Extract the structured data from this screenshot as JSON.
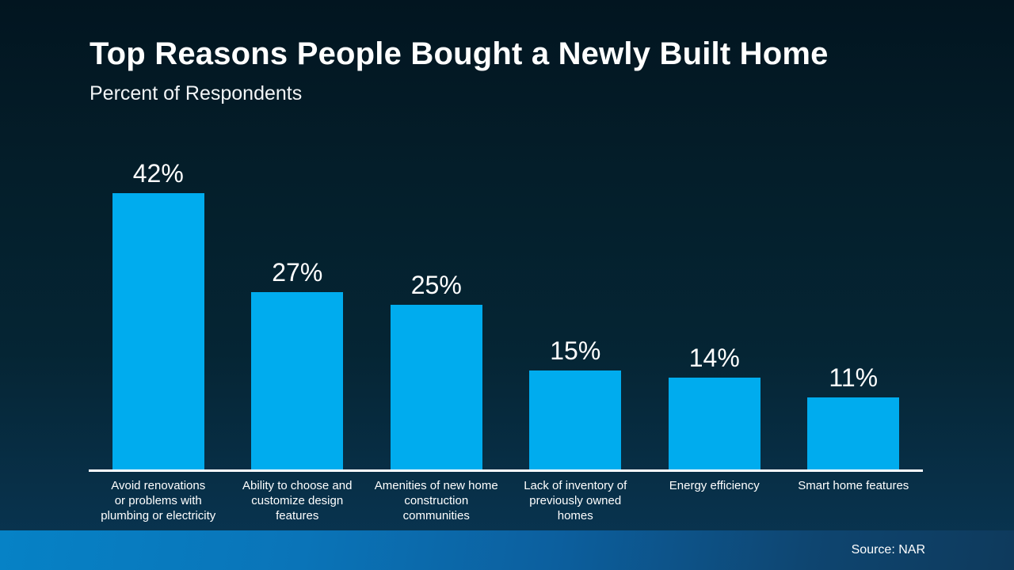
{
  "header": {
    "title": "Top Reasons People Bought a Newly Built Home",
    "subtitle": "Percent of Respondents"
  },
  "footer": {
    "source": "Source: NAR"
  },
  "colors": {
    "bar": "#00ACEE",
    "background_top": "#021520",
    "background_bottom": "#093450",
    "band_left": "#0682C6",
    "band_right": "#0E3A5C",
    "axis_line": "#FFFFFF",
    "text": "#FFFFFF"
  },
  "chart_data": {
    "type": "bar",
    "title": "Top Reasons People Bought a Newly Built Home",
    "subtitle": "Percent of Respondents",
    "categories": [
      "Avoid renovations or problems with plumbing or electricity",
      "Ability to choose and customize design features",
      "Amenities of new home construction communities",
      "Lack of inventory of previously owned homes",
      "Energy efficiency",
      "Smart home features"
    ],
    "category_lines": [
      [
        "Avoid renovations",
        "or problems with",
        "plumbing or electricity"
      ],
      [
        "Ability to choose and",
        "customize design",
        "features"
      ],
      [
        "Amenities of new home",
        "construction",
        "communities"
      ],
      [
        "Lack of inventory of",
        "previously owned",
        "homes"
      ],
      [
        "Energy efficiency"
      ],
      [
        "Smart home features"
      ]
    ],
    "values": [
      42,
      27,
      25,
      15,
      14,
      11
    ],
    "value_labels": [
      "42%",
      "27%",
      "25%",
      "15%",
      "14%",
      "11%"
    ],
    "unit": "%",
    "ylim": [
      0,
      50
    ],
    "grid": false,
    "legend": false,
    "bar_color": "#00ACEE",
    "source": "NAR"
  }
}
